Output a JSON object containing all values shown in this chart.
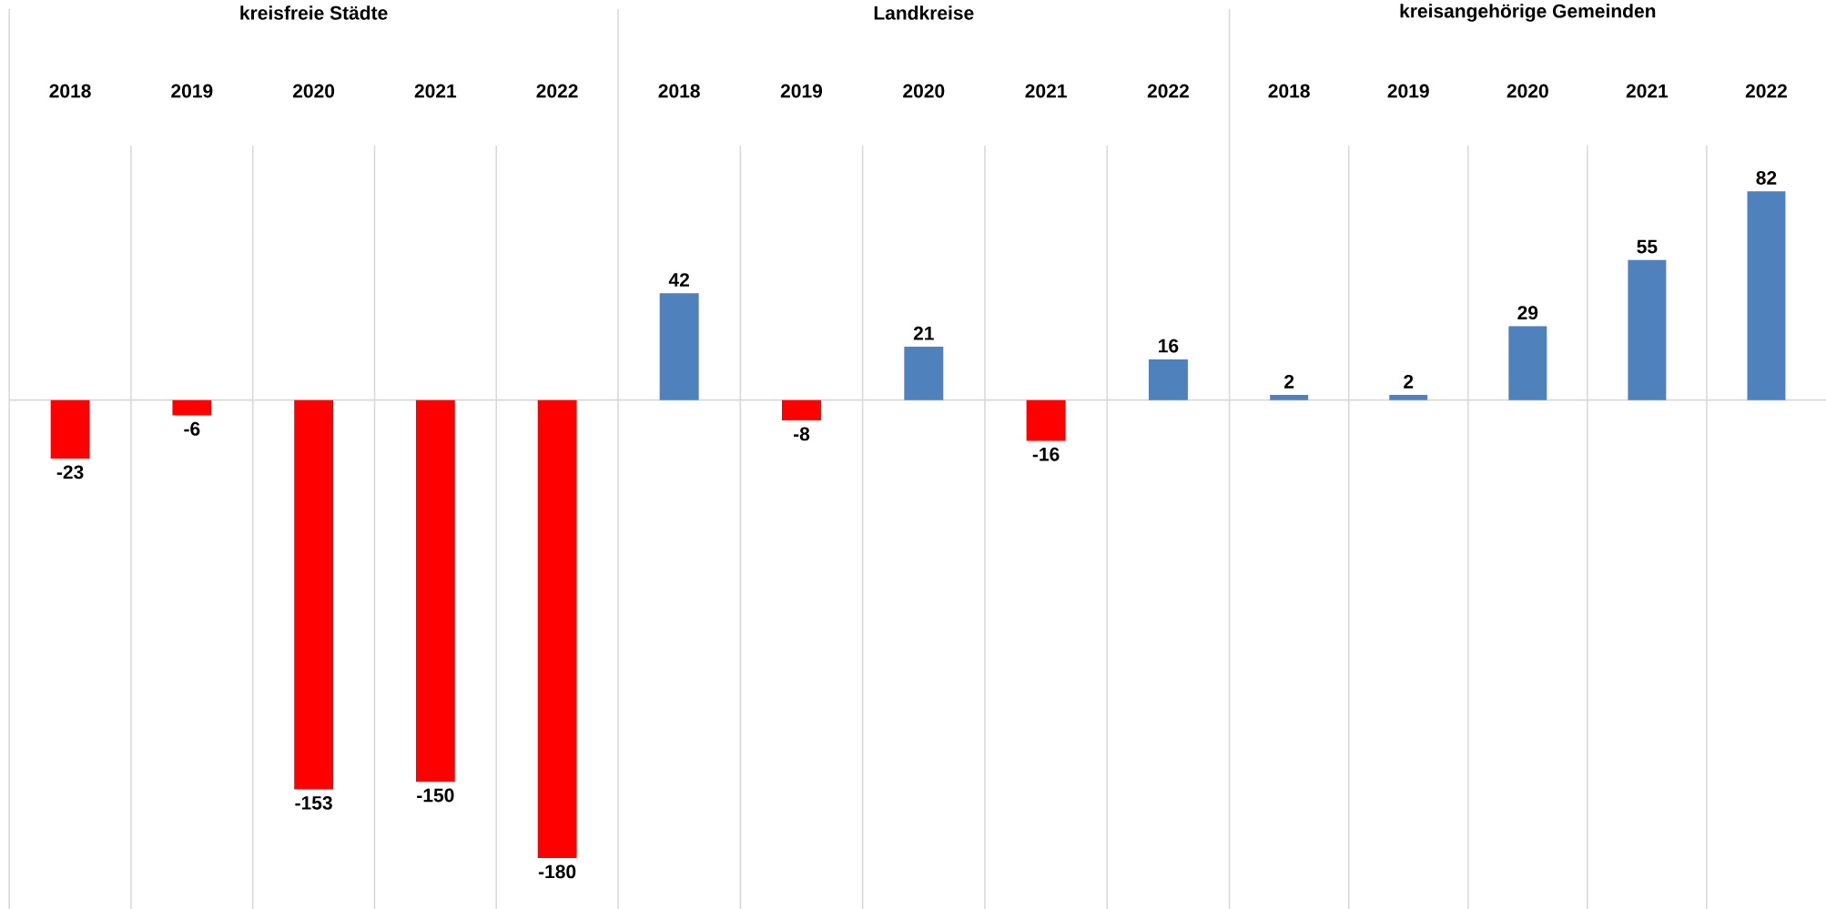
{
  "chart_data": [
    {
      "type": "bar",
      "title": "kreisfreie Städte",
      "categories": [
        "2018",
        "2019",
        "2020",
        "2021",
        "2022"
      ],
      "values": [
        -23,
        -6,
        -153,
        -150,
        -180
      ],
      "colors": [
        "#ff0000",
        "#ff0000",
        "#ff0000",
        "#ff0000",
        "#ff0000"
      ],
      "data_labels": true,
      "ylim": [
        -200,
        100
      ],
      "grid": "x"
    },
    {
      "type": "bar",
      "title": "Landkreise",
      "categories": [
        "2018",
        "2019",
        "2020",
        "2021",
        "2022"
      ],
      "values": [
        42,
        -8,
        21,
        -16,
        16
      ],
      "colors": [
        "#4f81bd",
        "#ff0000",
        "#4f81bd",
        "#ff0000",
        "#4f81bd"
      ],
      "data_labels": true,
      "ylim": [
        -200,
        100
      ],
      "grid": "x"
    },
    {
      "type": "bar",
      "title": "kreisangehörige Gemeinden",
      "categories": [
        "2018",
        "2019",
        "2020",
        "2021",
        "2022"
      ],
      "values": [
        2,
        2,
        29,
        55,
        82
      ],
      "colors": [
        "#4f81bd",
        "#4f81bd",
        "#4f81bd",
        "#4f81bd",
        "#4f81bd"
      ],
      "data_labels": true,
      "ylim": [
        -200,
        100
      ],
      "grid": "x"
    }
  ]
}
